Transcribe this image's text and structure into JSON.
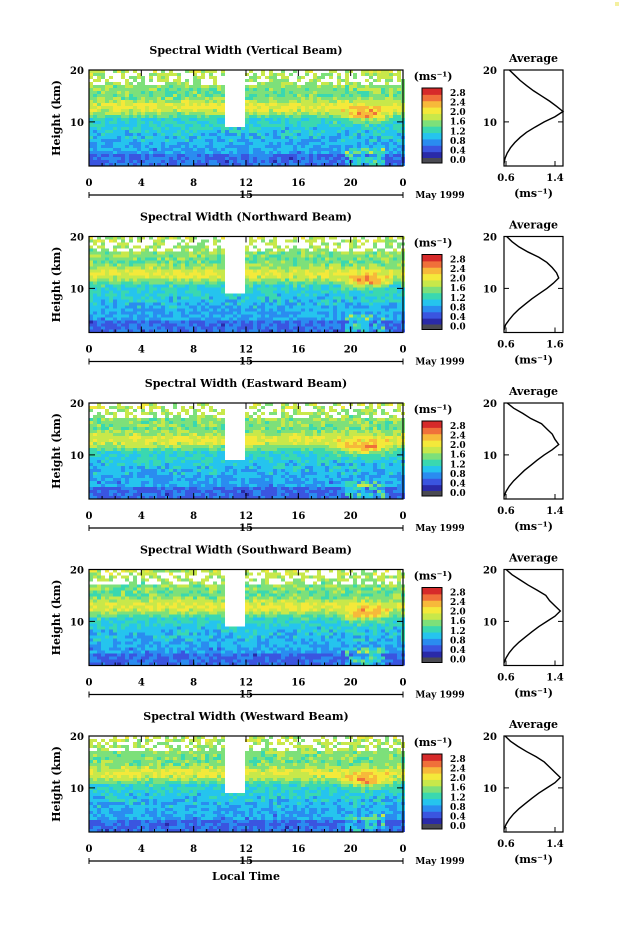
{
  "figure": {
    "time_xlabel": "Local Time",
    "colorbar_unit": "(ms⁻¹)",
    "avg_unit": "(ms⁻¹)",
    "colormap_colors": [
      "#2a2aa8",
      "#3a55e0",
      "#2a8cf0",
      "#25c4ee",
      "#3ad8b0",
      "#7de07a",
      "#c8e84a",
      "#f4e93a",
      "#f7b93a",
      "#f0703a",
      "#d62a2a",
      "#4a4a52"
    ],
    "ytick_values": [
      10,
      20
    ],
    "ytick_labels": [
      "10",
      "20"
    ],
    "ylim_km": [
      1.5,
      20
    ]
  },
  "chart_data": [
    {
      "type": "heatmap",
      "title": "Spectral Width (Vertical Beam)",
      "ylabel": "Height (km)",
      "x_ticks": [
        "0",
        "4",
        "8",
        "12",
        "16",
        "20",
        "0"
      ],
      "x_range": [
        0,
        24
      ],
      "day_labels": [
        "15"
      ],
      "date_label": "May 1999",
      "colorbar_ticks": [
        "0.0",
        "0.4",
        "0.8",
        "1.2",
        "1.6",
        "2.0",
        "2.4",
        "2.8"
      ],
      "colorbar_range": [
        0,
        2.8
      ],
      "average_profile": {
        "title": "Average",
        "x_ticks": [
          "0.6",
          "1.4"
        ],
        "y_ticks": [
          "10",
          "20"
        ],
        "points": [
          [
            0.6,
            2
          ],
          [
            0.62,
            3
          ],
          [
            0.66,
            4
          ],
          [
            0.72,
            5
          ],
          [
            0.8,
            6
          ],
          [
            0.9,
            7
          ],
          [
            1.02,
            8
          ],
          [
            1.18,
            9
          ],
          [
            1.35,
            10
          ],
          [
            1.55,
            11
          ],
          [
            1.7,
            12
          ],
          [
            1.58,
            13
          ],
          [
            1.45,
            14
          ],
          [
            1.3,
            15
          ],
          [
            1.15,
            16
          ],
          [
            1.02,
            17
          ],
          [
            0.9,
            18
          ],
          [
            0.8,
            19
          ],
          [
            0.7,
            20
          ]
        ],
        "xlim": [
          0.6,
          1.7
        ]
      }
    },
    {
      "type": "heatmap",
      "title": "Spectral Width (Northward Beam)",
      "ylabel": "Height (km)",
      "x_ticks": [
        "0",
        "4",
        "8",
        "12",
        "16",
        "20",
        "0"
      ],
      "x_range": [
        0,
        24
      ],
      "day_labels": [
        "15"
      ],
      "date_label": "May 1999",
      "colorbar_ticks": [
        "0.0",
        "0.4",
        "0.8",
        "1.2",
        "1.6",
        "2.0",
        "2.4",
        "2.8"
      ],
      "colorbar_range": [
        0,
        2.8
      ],
      "average_profile": {
        "title": "Average",
        "x_ticks": [
          "0.6",
          "1.6"
        ],
        "y_ticks": [
          "10",
          "20"
        ],
        "points": [
          [
            0.6,
            2
          ],
          [
            0.63,
            3
          ],
          [
            0.7,
            4
          ],
          [
            0.78,
            5
          ],
          [
            0.88,
            6
          ],
          [
            1.0,
            7
          ],
          [
            1.12,
            8
          ],
          [
            1.26,
            9
          ],
          [
            1.4,
            10
          ],
          [
            1.52,
            11
          ],
          [
            1.62,
            12
          ],
          [
            1.58,
            13
          ],
          [
            1.5,
            14
          ],
          [
            1.4,
            15
          ],
          [
            1.25,
            16
          ],
          [
            1.05,
            17
          ],
          [
            0.88,
            18
          ],
          [
            0.75,
            19
          ],
          [
            0.65,
            20
          ]
        ],
        "xlim": [
          0.6,
          1.7
        ]
      }
    },
    {
      "type": "heatmap",
      "title": "Spectral Width (Eastward Beam)",
      "ylabel": "Height (km)",
      "x_ticks": [
        "0",
        "4",
        "8",
        "12",
        "16",
        "20",
        "0"
      ],
      "x_range": [
        0,
        24
      ],
      "day_labels": [
        "15"
      ],
      "date_label": "May 1999",
      "colorbar_ticks": [
        "0.0",
        "0.4",
        "0.8",
        "1.2",
        "1.6",
        "2.0",
        "2.4",
        "2.8"
      ],
      "colorbar_range": [
        0,
        2.8
      ],
      "average_profile": {
        "title": "Average",
        "x_ticks": [
          "0.6",
          "1.4"
        ],
        "y_ticks": [
          "10",
          "20"
        ],
        "points": [
          [
            0.6,
            2
          ],
          [
            0.64,
            3
          ],
          [
            0.7,
            4
          ],
          [
            0.78,
            5
          ],
          [
            0.88,
            6
          ],
          [
            0.98,
            7
          ],
          [
            1.1,
            8
          ],
          [
            1.22,
            9
          ],
          [
            1.35,
            10
          ],
          [
            1.5,
            11
          ],
          [
            1.62,
            12
          ],
          [
            1.55,
            13
          ],
          [
            1.5,
            14
          ],
          [
            1.4,
            15
          ],
          [
            1.3,
            16
          ],
          [
            1.1,
            17
          ],
          [
            0.95,
            18
          ],
          [
            0.78,
            19
          ],
          [
            0.66,
            20
          ]
        ],
        "xlim": [
          0.6,
          1.7
        ]
      }
    },
    {
      "type": "heatmap",
      "title": "Spectral Width (Southward Beam)",
      "ylabel": "Height (km)",
      "x_ticks": [
        "0",
        "4",
        "8",
        "12",
        "16",
        "20",
        "0"
      ],
      "x_range": [
        0,
        24
      ],
      "day_labels": [
        "15"
      ],
      "date_label": "May 1999",
      "colorbar_ticks": [
        "0.0",
        "0.4",
        "0.8",
        "1.2",
        "1.6",
        "2.0",
        "2.4",
        "2.8"
      ],
      "colorbar_range": [
        0,
        2.8
      ],
      "average_profile": {
        "title": "Average",
        "x_ticks": [
          "0.6",
          "1.4"
        ],
        "y_ticks": [
          "10",
          "20"
        ],
        "points": [
          [
            0.6,
            2
          ],
          [
            0.64,
            3
          ],
          [
            0.7,
            4
          ],
          [
            0.78,
            5
          ],
          [
            0.88,
            6
          ],
          [
            1.0,
            7
          ],
          [
            1.12,
            8
          ],
          [
            1.25,
            9
          ],
          [
            1.4,
            10
          ],
          [
            1.55,
            11
          ],
          [
            1.65,
            12
          ],
          [
            1.55,
            13
          ],
          [
            1.45,
            14
          ],
          [
            1.38,
            15
          ],
          [
            1.22,
            16
          ],
          [
            1.05,
            17
          ],
          [
            0.9,
            18
          ],
          [
            0.75,
            19
          ],
          [
            0.64,
            20
          ]
        ],
        "xlim": [
          0.6,
          1.7
        ]
      }
    },
    {
      "type": "heatmap",
      "title": "Spectral Width (Westward Beam)",
      "ylabel": "Height (km)",
      "x_ticks": [
        "0",
        "4",
        "8",
        "12",
        "16",
        "20",
        "0"
      ],
      "x_range": [
        0,
        24
      ],
      "day_labels": [
        "15"
      ],
      "date_label": "May 1999",
      "colorbar_ticks": [
        "0.0",
        "0.4",
        "0.8",
        "1.2",
        "1.6",
        "2.0",
        "2.4",
        "2.8"
      ],
      "colorbar_range": [
        0,
        2.8
      ],
      "average_profile": {
        "title": "Average",
        "x_ticks": [
          "0.6",
          "1.4"
        ],
        "y_ticks": [
          "10",
          "20"
        ],
        "points": [
          [
            0.6,
            2
          ],
          [
            0.64,
            3
          ],
          [
            0.7,
            4
          ],
          [
            0.78,
            5
          ],
          [
            0.88,
            6
          ],
          [
            1.0,
            7
          ],
          [
            1.12,
            8
          ],
          [
            1.25,
            9
          ],
          [
            1.4,
            10
          ],
          [
            1.55,
            11
          ],
          [
            1.65,
            12
          ],
          [
            1.55,
            13
          ],
          [
            1.45,
            14
          ],
          [
            1.35,
            15
          ],
          [
            1.2,
            16
          ],
          [
            1.02,
            17
          ],
          [
            0.86,
            18
          ],
          [
            0.72,
            19
          ],
          [
            0.62,
            20
          ]
        ],
        "xlim": [
          0.6,
          1.7
        ]
      }
    }
  ]
}
